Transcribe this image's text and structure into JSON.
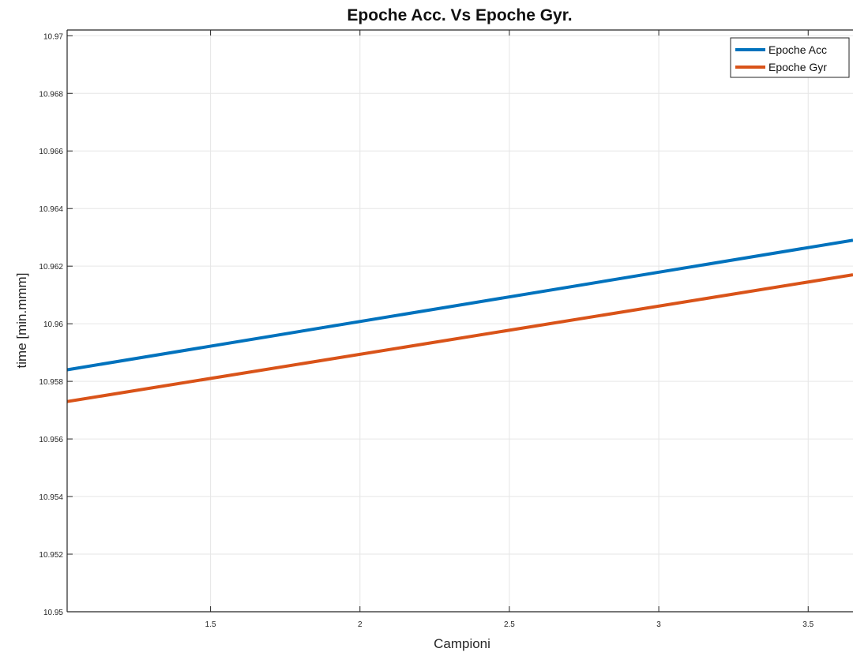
{
  "chart_data": {
    "type": "line",
    "title": "Epoche Acc. Vs Epoche Gyr.",
    "xlabel": "Campioni",
    "ylabel": "time [min.mmm]",
    "xlim": [
      1.02,
      3.65
    ],
    "ylim": [
      10.95,
      10.9702
    ],
    "x_ticks": [
      1.5,
      2,
      2.5,
      3,
      3.5
    ],
    "x_tick_labels": [
      "1.5",
      "2",
      "2.5",
      "3",
      "3.5"
    ],
    "y_ticks": [
      10.95,
      10.952,
      10.954,
      10.956,
      10.958,
      10.96,
      10.962,
      10.964,
      10.966,
      10.968,
      10.97
    ],
    "y_tick_labels": [
      "10.95",
      "10.952",
      "10.954",
      "10.956",
      "10.958",
      "10.96",
      "10.962",
      "10.964",
      "10.966",
      "10.968",
      "10.97"
    ],
    "grid": true,
    "legend_position": "top-right",
    "series": [
      {
        "name": "Epoche Acc",
        "color": "#0072BD",
        "x": [
          1.02,
          3.65
        ],
        "y": [
          10.9584,
          10.9629
        ]
      },
      {
        "name": "Epoche Gyr",
        "color": "#D95319",
        "x": [
          1.02,
          3.65
        ],
        "y": [
          10.9573,
          10.9617
        ]
      }
    ]
  }
}
